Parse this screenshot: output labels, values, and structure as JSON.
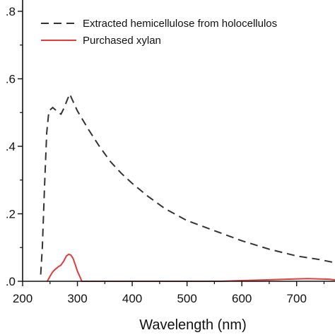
{
  "chart_data": {
    "type": "line",
    "title": "",
    "xlabel": "Wavelength (nm)",
    "ylabel": "",
    "xlim": [
      200,
      770
    ],
    "ylim": [
      0,
      0.8
    ],
    "x_ticks": [
      200,
      300,
      400,
      500,
      600,
      700
    ],
    "x_tick_labels": [
      "200",
      "300",
      "400",
      "500",
      "600",
      "700"
    ],
    "y_ticks": [
      0.0,
      0.2,
      0.4,
      0.6,
      0.8
    ],
    "y_tick_labels": [
      ".0",
      ".2",
      ".4",
      ".6",
      ".8"
    ],
    "grid": false,
    "legend_position": "top-left",
    "series": [
      {
        "name": "Extracted hemicellulose from holocellulos",
        "color": "#333333",
        "style": "dashed",
        "points": [
          [
            233,
            0.02
          ],
          [
            236,
            0.1
          ],
          [
            240,
            0.28
          ],
          [
            244,
            0.44
          ],
          [
            248,
            0.505
          ],
          [
            255,
            0.515
          ],
          [
            262,
            0.505
          ],
          [
            270,
            0.495
          ],
          [
            276,
            0.515
          ],
          [
            282,
            0.54
          ],
          [
            286,
            0.555
          ],
          [
            290,
            0.54
          ],
          [
            300,
            0.505
          ],
          [
            320,
            0.45
          ],
          [
            340,
            0.4
          ],
          [
            360,
            0.355
          ],
          [
            380,
            0.32
          ],
          [
            400,
            0.29
          ],
          [
            430,
            0.25
          ],
          [
            460,
            0.215
          ],
          [
            500,
            0.18
          ],
          [
            550,
            0.15
          ],
          [
            600,
            0.12
          ],
          [
            650,
            0.095
          ],
          [
            700,
            0.075
          ],
          [
            740,
            0.065
          ],
          [
            770,
            0.055
          ]
        ]
      },
      {
        "name": "Purchased xylan",
        "color": "#e03c3c",
        "style": "solid",
        "points": [
          [
            245,
            0.0
          ],
          [
            250,
            0.015
          ],
          [
            255,
            0.028
          ],
          [
            260,
            0.036
          ],
          [
            265,
            0.043
          ],
          [
            270,
            0.048
          ],
          [
            275,
            0.06
          ],
          [
            280,
            0.075
          ],
          [
            284,
            0.08
          ],
          [
            288,
            0.078
          ],
          [
            292,
            0.068
          ],
          [
            296,
            0.05
          ],
          [
            300,
            0.03
          ],
          [
            305,
            0.012
          ],
          [
            308,
            0.0
          ],
          [
            560,
            0.0
          ],
          [
            600,
            0.002
          ],
          [
            640,
            0.004
          ],
          [
            680,
            0.006
          ],
          [
            720,
            0.008
          ],
          [
            760,
            0.006
          ],
          [
            770,
            0.004
          ]
        ]
      }
    ]
  }
}
